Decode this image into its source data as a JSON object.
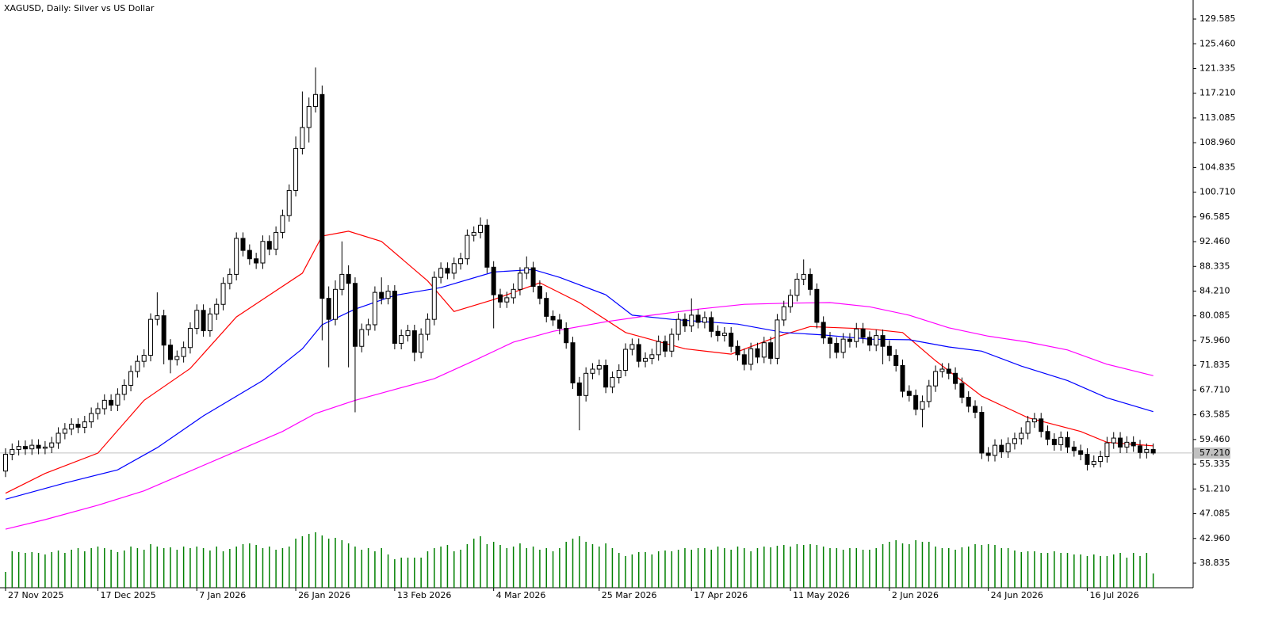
{
  "chart_data": {
    "type": "candlestick",
    "title": "XAGUSD, Daily:  Silver vs US Dollar",
    "open": [
      54.2,
      57.0,
      57.8,
      58.3,
      57.9,
      58.5,
      58.0,
      58.2,
      58.9,
      60.5,
      61.2,
      62.0,
      61.5,
      62.4,
      63.8,
      64.6,
      66.0,
      65.2,
      67.0,
      68.5,
      70.8,
      72.5,
      73.5,
      79.5,
      80.1,
      75.2,
      72.8,
      73.3,
      74.8,
      78.0,
      81.0,
      77.6,
      80.4,
      82.0,
      85.5,
      87.0,
      93.0,
      91.0,
      89.6,
      88.9,
      92.5,
      91.2,
      94.0,
      96.8,
      101.0,
      108.0,
      111.5,
      115.0,
      117.0,
      83.0,
      79.5,
      84.5,
      87.0,
      85.5,
      75.0,
      77.8,
      78.6,
      84.0,
      83.0,
      84.2,
      75.5,
      76.8,
      77.6,
      74.0,
      77.0,
      79.5,
      86.5,
      88.0,
      87.2,
      88.8,
      89.6,
      93.5,
      94.0,
      95.2,
      88.2,
      83.6,
      82.4,
      83.1,
      84.5,
      87.2,
      88.1,
      85.0,
      83.0,
      80.0,
      79.4,
      78.0,
      75.6,
      68.9,
      66.8,
      70.5,
      71.2,
      71.8,
      68.2,
      69.8,
      71.0,
      74.5,
      75.3,
      72.5,
      73.0,
      73.6,
      75.8,
      74.2,
      77.0,
      79.5,
      78.4,
      80.2,
      79.0,
      79.8,
      77.5,
      76.8,
      77.2,
      75.0,
      73.6,
      72.0,
      74.6,
      73.2,
      75.6,
      73.0,
      79.4,
      81.6,
      83.5,
      86.2,
      87.0,
      84.5,
      79.0,
      76.4,
      75.5,
      74.0,
      76.2,
      75.8,
      77.9,
      76.5,
      75.2,
      76.8,
      75.0,
      73.5,
      71.8,
      67.5,
      66.8,
      64.5,
      65.8,
      68.4,
      70.8,
      71.2,
      70.5,
      68.8,
      66.5,
      65.0,
      64.0,
      57.2,
      56.8,
      58.5,
      57.4,
      58.8,
      59.6,
      60.5,
      62.4,
      62.9,
      60.8,
      59.5,
      58.6,
      59.8,
      58.2,
      57.6,
      57.0,
      55.3,
      55.8,
      56.6,
      58.9,
      59.7,
      58.2,
      59.0,
      58.4,
      57.3,
      57.8
    ],
    "high": [
      58.0,
      58.8,
      59.3,
      59.3,
      59.5,
      59.5,
      59.2,
      59.9,
      61.5,
      62.2,
      63.0,
      63.0,
      63.4,
      64.8,
      65.6,
      67.0,
      67.0,
      68.0,
      69.5,
      71.8,
      73.5,
      74.5,
      80.5,
      84.0,
      81.1,
      76.2,
      74.3,
      75.8,
      79.0,
      82.0,
      82.0,
      81.4,
      83.0,
      86.5,
      88.0,
      94.0,
      94.0,
      92.0,
      90.6,
      93.5,
      93.5,
      95.0,
      97.8,
      102.0,
      110.0,
      117.5,
      116.5,
      121.5,
      118.5,
      85.0,
      86.0,
      92.5,
      88.5,
      86.5,
      78.8,
      79.6,
      85.0,
      86.5,
      85.2,
      85.2,
      77.8,
      78.6,
      78.6,
      78.0,
      80.5,
      87.5,
      89.0,
      89.0,
      89.8,
      90.6,
      94.5,
      95.0,
      96.5,
      96.2,
      89.2,
      84.6,
      84.1,
      85.5,
      88.2,
      90.0,
      89.1,
      86.0,
      84.0,
      81.0,
      80.4,
      79.0,
      76.6,
      69.9,
      71.5,
      72.2,
      72.8,
      72.8,
      70.8,
      72.0,
      75.5,
      76.3,
      76.3,
      74.0,
      74.6,
      76.8,
      76.8,
      78.0,
      80.5,
      80.5,
      83.0,
      81.2,
      80.8,
      80.8,
      78.5,
      78.2,
      78.2,
      76.0,
      74.6,
      75.6,
      75.6,
      76.6,
      76.6,
      80.4,
      82.6,
      84.5,
      87.2,
      89.5,
      88.0,
      85.5,
      80.0,
      77.4,
      76.5,
      77.2,
      77.2,
      78.9,
      78.9,
      77.5,
      77.8,
      77.8,
      76.0,
      74.5,
      72.8,
      68.5,
      67.8,
      66.8,
      69.4,
      71.8,
      72.2,
      72.2,
      71.5,
      69.8,
      67.5,
      66.0,
      65.0,
      58.2,
      59.5,
      59.5,
      59.8,
      60.6,
      61.5,
      63.4,
      63.9,
      63.9,
      61.8,
      60.5,
      60.8,
      60.8,
      59.2,
      58.6,
      58.0,
      56.8,
      57.6,
      59.9,
      60.7,
      60.7,
      60.0,
      60.0,
      59.4,
      58.8,
      58.8
    ],
    "low": [
      53.2,
      56.0,
      56.8,
      56.9,
      56.9,
      57.0,
      57.0,
      57.2,
      57.9,
      59.5,
      60.2,
      60.5,
      60.5,
      61.4,
      62.8,
      63.6,
      64.2,
      64.2,
      66.0,
      67.5,
      69.8,
      71.5,
      72.5,
      78.5,
      72.0,
      70.5,
      71.8,
      72.3,
      73.8,
      77.0,
      76.6,
      76.6,
      79.4,
      81.0,
      84.5,
      86.0,
      90.0,
      88.6,
      87.9,
      87.9,
      90.2,
      90.2,
      93.0,
      95.8,
      100.0,
      107.0,
      109.0,
      114.0,
      76.0,
      71.5,
      78.5,
      83.5,
      71.5,
      64.0,
      74.0,
      76.8,
      77.6,
      82.0,
      82.0,
      74.5,
      74.5,
      75.8,
      72.5,
      73.0,
      76.0,
      78.5,
      85.5,
      86.2,
      86.2,
      87.8,
      88.6,
      92.5,
      93.0,
      87.2,
      78.0,
      81.4,
      81.4,
      82.1,
      83.5,
      86.2,
      84.0,
      82.0,
      79.0,
      78.4,
      77.0,
      74.6,
      67.9,
      61.0,
      65.8,
      69.5,
      70.2,
      67.2,
      67.2,
      68.8,
      70.0,
      73.5,
      71.5,
      71.5,
      72.0,
      72.6,
      73.2,
      73.2,
      76.0,
      77.4,
      77.4,
      78.0,
      78.0,
      76.5,
      75.8,
      75.8,
      74.0,
      72.6,
      71.0,
      71.0,
      72.2,
      72.2,
      72.0,
      72.0,
      78.4,
      80.6,
      82.5,
      85.2,
      83.5,
      78.0,
      75.4,
      73.0,
      73.0,
      73.0,
      74.8,
      74.8,
      75.5,
      74.2,
      74.2,
      72.0,
      72.5,
      70.8,
      66.5,
      65.8,
      63.5,
      61.5,
      64.8,
      67.4,
      69.8,
      69.5,
      67.8,
      65.5,
      64.0,
      63.0,
      56.2,
      55.8,
      55.8,
      56.4,
      56.4,
      57.8,
      58.6,
      59.5,
      61.4,
      59.8,
      58.5,
      57.6,
      57.6,
      57.2,
      56.6,
      56.0,
      54.3,
      54.8,
      54.8,
      55.6,
      57.9,
      57.2,
      57.2,
      57.4,
      56.3,
      56.3,
      56.9
    ],
    "close": [
      57.0,
      57.8,
      58.3,
      57.9,
      58.5,
      58.0,
      58.2,
      58.9,
      60.5,
      61.2,
      62.0,
      61.5,
      62.4,
      63.8,
      64.6,
      66.0,
      65.2,
      67.0,
      68.5,
      70.8,
      72.5,
      73.5,
      79.5,
      80.1,
      75.2,
      72.8,
      73.3,
      74.8,
      78.0,
      81.0,
      77.6,
      80.4,
      82.0,
      85.5,
      87.0,
      93.0,
      91.0,
      89.6,
      88.9,
      92.5,
      91.2,
      94.0,
      96.8,
      101.0,
      108.0,
      111.5,
      115.0,
      117.0,
      83.0,
      79.5,
      84.5,
      87.0,
      85.5,
      75.0,
      77.8,
      78.6,
      84.0,
      83.0,
      84.2,
      75.5,
      76.8,
      77.6,
      74.0,
      77.0,
      79.5,
      86.5,
      88.0,
      87.2,
      88.8,
      89.6,
      93.5,
      94.0,
      95.2,
      88.2,
      83.6,
      82.4,
      83.1,
      84.5,
      87.2,
      88.1,
      85.0,
      83.0,
      80.0,
      79.4,
      78.0,
      75.6,
      68.9,
      66.8,
      70.5,
      71.2,
      71.8,
      68.2,
      69.8,
      71.0,
      74.5,
      75.3,
      72.5,
      73.0,
      73.6,
      75.8,
      74.2,
      77.0,
      79.5,
      78.4,
      80.2,
      79.0,
      79.8,
      77.5,
      76.8,
      77.2,
      75.0,
      73.6,
      72.0,
      74.6,
      73.2,
      75.6,
      73.0,
      79.4,
      81.6,
      83.5,
      86.2,
      87.0,
      84.5,
      79.0,
      76.4,
      75.5,
      74.0,
      76.2,
      75.8,
      77.9,
      76.5,
      75.2,
      76.8,
      75.0,
      73.5,
      71.8,
      67.5,
      66.8,
      64.5,
      65.8,
      68.4,
      70.8,
      71.2,
      70.5,
      68.8,
      66.5,
      65.0,
      64.0,
      57.2,
      56.8,
      58.5,
      57.4,
      58.8,
      59.6,
      60.5,
      62.4,
      62.9,
      60.8,
      59.5,
      58.6,
      59.8,
      58.2,
      57.6,
      57.0,
      55.3,
      55.8,
      56.6,
      58.9,
      59.7,
      58.2,
      59.0,
      58.4,
      57.3,
      57.8,
      57.21
    ],
    "volume": [
      20,
      46,
      45,
      44,
      45,
      44,
      42,
      45,
      47,
      44,
      48,
      50,
      46,
      50,
      52,
      50,
      48,
      45,
      47,
      52,
      50,
      48,
      55,
      52,
      50,
      51,
      48,
      52,
      50,
      52,
      50,
      47,
      52,
      46,
      49,
      52,
      55,
      56,
      54,
      50,
      52,
      48,
      50,
      52,
      62,
      65,
      68,
      70,
      66,
      62,
      63,
      60,
      56,
      52,
      48,
      50,
      46,
      50,
      42,
      36,
      38,
      38,
      38,
      38,
      46,
      50,
      52,
      54,
      46,
      48,
      55,
      62,
      65,
      55,
      58,
      54,
      50,
      52,
      56,
      50,
      52,
      48,
      50,
      46,
      50,
      58,
      62,
      65,
      58,
      55,
      52,
      56,
      50,
      44,
      40,
      42,
      45,
      45,
      42,
      46,
      47,
      46,
      48,
      50,
      48,
      50,
      50,
      48,
      52,
      50,
      48,
      52,
      50,
      46,
      50,
      52,
      51,
      53,
      54,
      52,
      55,
      54,
      55,
      54,
      52,
      50,
      50,
      48,
      50,
      50,
      48,
      48,
      50,
      55,
      58,
      60,
      56,
      55,
      60,
      58,
      58,
      52,
      50,
      50,
      48,
      51,
      52,
      55,
      54,
      55,
      54,
      50,
      50,
      47,
      45,
      46,
      46,
      44,
      44,
      46,
      44,
      44,
      42,
      42,
      40,
      42,
      40,
      40,
      42,
      44,
      38,
      44,
      40,
      44,
      18
    ],
    "volume_ylim": [
      0,
      100
    ],
    "volume_color": "#008000",
    "up_color": "#ffffff",
    "down_color": "#000000",
    "moving_averages": [
      {
        "color": "#ff0000",
        "x": [
          0,
          6,
          14,
          21,
          28,
          35,
          45,
          48,
          52,
          57,
          64,
          68,
          74,
          81,
          87,
          94,
          103,
          110,
          117,
          122,
          131,
          136,
          141,
          148,
          155,
          163,
          167,
          174
        ],
        "values": [
          50.5,
          53.8,
          57.2,
          66.0,
          71.3,
          79.9,
          87.2,
          93.4,
          94.2,
          92.5,
          85.9,
          80.8,
          82.8,
          85.6,
          82.3,
          77.3,
          74.6,
          73.7,
          76.6,
          78.3,
          77.9,
          77.3,
          72.6,
          66.7,
          63.1,
          60.8,
          59.0,
          58.4
        ]
      },
      {
        "color": "#0000ff",
        "x": [
          0,
          9,
          17,
          23,
          30,
          39,
          45,
          48,
          53,
          59,
          66,
          74,
          80,
          84,
          91,
          95,
          101,
          111,
          118,
          124,
          131,
          137,
          143,
          148,
          154,
          161,
          167,
          174
        ],
        "values": [
          49.5,
          52.2,
          54.4,
          58.1,
          63.4,
          69.3,
          74.6,
          78.6,
          81.2,
          83.5,
          84.8,
          87.4,
          87.8,
          86.5,
          83.6,
          80.2,
          79.5,
          78.7,
          77.3,
          76.9,
          76.2,
          76.1,
          74.9,
          74.2,
          71.7,
          69.3,
          66.4,
          64.1
        ]
      },
      {
        "color": "#ff00ff",
        "x": [
          0,
          6,
          14,
          21,
          28,
          35,
          42,
          47,
          53,
          59,
          65,
          71,
          77,
          83,
          91,
          98,
          105,
          112,
          119,
          125,
          131,
          137,
          143,
          149,
          155,
          161,
          167,
          174
        ],
        "values": [
          44.5,
          46.1,
          48.5,
          50.9,
          54.2,
          57.5,
          60.8,
          63.8,
          66.0,
          67.8,
          69.6,
          72.6,
          75.7,
          77.5,
          79.1,
          80.2,
          81.2,
          82.0,
          82.2,
          82.3,
          81.6,
          80.2,
          78.1,
          76.7,
          75.7,
          74.4,
          72.0,
          70.1
        ]
      }
    ],
    "xlim": [
      -0.84,
      180.05
    ],
    "xticks": [
      {
        "value": 0,
        "label": "27 Nov 2025"
      },
      {
        "value": 14,
        "label": "17 Dec 2025"
      },
      {
        "value": 29,
        "label": "7 Jan 2026"
      },
      {
        "value": 44,
        "label": "26 Jan 2026"
      },
      {
        "value": 59,
        "label": "13 Feb 2026"
      },
      {
        "value": 74,
        "label": "4 Mar 2026"
      },
      {
        "value": 90,
        "label": "25 Mar 2026"
      },
      {
        "value": 104,
        "label": "17 Apr 2026"
      },
      {
        "value": 119,
        "label": "11 May 2026"
      },
      {
        "value": 134,
        "label": "2 Jun 2026"
      },
      {
        "value": 149,
        "label": "24 Jun 2026"
      },
      {
        "value": 164,
        "label": "16 Jul 2026"
      }
    ],
    "ylim": [
      34.74,
      132.76
    ],
    "yticks": [
      129.585,
      {
        "value": 125.46,
        "label": "125.460"
      },
      121.335,
      {
        "value": 117.21,
        "label": "117.210"
      },
      113.085,
      {
        "value": 108.96,
        "label": "108.960"
      },
      104.835,
      {
        "value": 100.71,
        "label": "100.710"
      },
      96.585,
      {
        "value": 92.46,
        "label": "92.460"
      },
      88.335,
      {
        "value": 84.21,
        "label": "84.210"
      },
      80.085,
      {
        "value": 75.96,
        "label": "75.960"
      },
      71.835,
      {
        "value": 67.71,
        "label": "67.710"
      },
      63.585,
      {
        "value": 59.46,
        "label": "59.460"
      },
      55.335,
      {
        "value": 51.21,
        "label": "51.210"
      },
      47.085,
      {
        "value": 42.96,
        "label": "42.960"
      },
      38.835
    ],
    "last_price": {
      "value": 57.21,
      "label": "57.210"
    }
  }
}
